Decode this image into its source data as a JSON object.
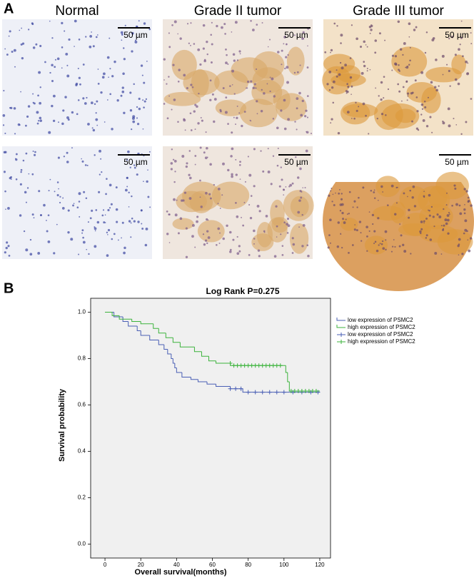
{
  "panel_a": {
    "label": "A",
    "columns": [
      "Normal",
      "Grade II tumor",
      "Grade III tumor"
    ],
    "scale_bars": [
      "50 µm",
      "50 µm",
      "50 µm",
      "50 µm",
      "50 µm",
      "50 µm"
    ]
  },
  "panel_b": {
    "label": "B"
  },
  "chart_data": {
    "type": "step",
    "title": "Log Rank P=0.275",
    "x_label": "Overall survival(months)",
    "y_label": "Survival probability",
    "xlim": [
      -8,
      126
    ],
    "ylim": [
      -0.06,
      1.06
    ],
    "xticks": [
      0,
      20,
      40,
      60,
      80,
      100,
      120
    ],
    "yticks": [
      {
        "value": 0,
        "label": "0.0"
      },
      0.2,
      0.4,
      0.6,
      0.8,
      {
        "value": 1,
        "label": "1.0"
      }
    ],
    "legend": "right",
    "series": [
      {
        "name": "low expression of PSMC2",
        "color": "#4a5fb5",
        "marker": "line",
        "x": [
          0,
          5,
          10,
          13,
          18,
          20,
          25,
          30,
          33,
          35,
          37,
          38,
          39,
          40,
          43,
          48,
          52,
          57,
          62,
          70,
          77,
          120
        ],
        "values": [
          1.0,
          0.98,
          0.96,
          0.94,
          0.92,
          0.9,
          0.88,
          0.86,
          0.84,
          0.82,
          0.8,
          0.78,
          0.76,
          0.74,
          0.72,
          0.71,
          0.7,
          0.69,
          0.68,
          0.67,
          0.655,
          0.655
        ]
      },
      {
        "name": "high expression of PSMC2",
        "color": "#3cb33c",
        "marker": "line",
        "x": [
          0,
          4,
          8,
          15,
          20,
          27,
          30,
          34,
          38,
          42,
          50,
          54,
          58,
          62,
          70,
          75,
          101,
          102,
          103,
          120
        ],
        "values": [
          1.0,
          0.985,
          0.97,
          0.96,
          0.95,
          0.93,
          0.91,
          0.89,
          0.87,
          0.85,
          0.83,
          0.81,
          0.79,
          0.78,
          0.77,
          0.77,
          0.74,
          0.7,
          0.66,
          0.66
        ]
      },
      {
        "name": "low expression of PSMC2",
        "color": "#4a5fb5",
        "marker": "+",
        "x": [
          70,
          73,
          76,
          80,
          84,
          88,
          92,
          96,
          100,
          105,
          110,
          115,
          119
        ],
        "values": [
          0.67,
          0.67,
          0.67,
          0.655,
          0.655,
          0.655,
          0.655,
          0.655,
          0.655,
          0.655,
          0.655,
          0.655,
          0.655
        ]
      },
      {
        "name": "high expression of PSMC2",
        "color": "#3cb33c",
        "marker": "+",
        "x": [
          70,
          72,
          74,
          76,
          78,
          80,
          82,
          84,
          86,
          88,
          90,
          92,
          94,
          96,
          98,
          104,
          106,
          108,
          110,
          112,
          114,
          116,
          118
        ],
        "values": [
          0.78,
          0.77,
          0.77,
          0.77,
          0.77,
          0.77,
          0.77,
          0.77,
          0.77,
          0.77,
          0.77,
          0.77,
          0.77,
          0.77,
          0.77,
          0.66,
          0.66,
          0.66,
          0.66,
          0.66,
          0.66,
          0.66,
          0.66
        ]
      }
    ]
  }
}
